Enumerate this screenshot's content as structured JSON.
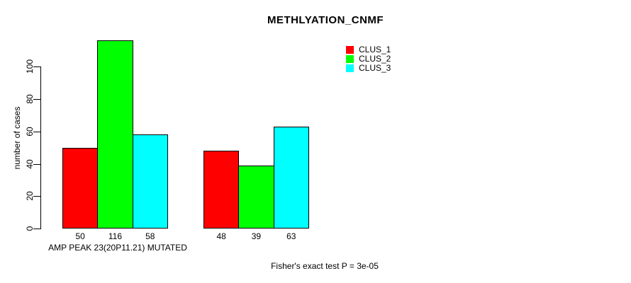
{
  "chart_data": {
    "type": "bar",
    "title": "METHLYATION_CNMF",
    "ylabel": "number of cases",
    "xlabel": "AMP PEAK 23(20P11.21) MUTATED",
    "annotation": "Fisher's exact test P = 3e-05",
    "series": [
      {
        "name": "CLUS_1",
        "color": "#FF0000",
        "values": [
          50,
          48
        ]
      },
      {
        "name": "CLUS_2",
        "color": "#00FF00",
        "values": [
          116,
          39
        ]
      },
      {
        "name": "CLUS_3",
        "color": "#00FFFF",
        "values": [
          58,
          63
        ]
      }
    ],
    "n_groups": 2,
    "yticks": [
      0,
      20,
      40,
      60,
      80,
      100
    ],
    "ylim": [
      0,
      118
    ],
    "grid": false,
    "legend_position": "top-right",
    "bar_border_color": "#000000",
    "text_color": "#000000",
    "background_color": "#FFFFFF"
  }
}
